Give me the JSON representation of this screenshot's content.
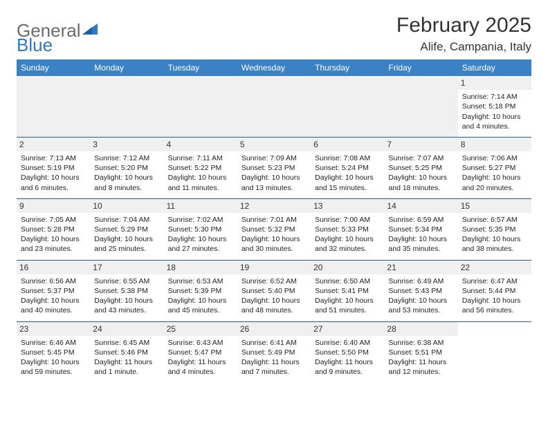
{
  "logo": {
    "text1": "General",
    "text2": "Blue"
  },
  "title": "February 2025",
  "location": "Alife, Campania, Italy",
  "header_bg": "#3b82c4",
  "day_separator_color": "#2b5a8a",
  "alt_row_bg": "#f0f0f0",
  "day_headers": [
    "Sunday",
    "Monday",
    "Tuesday",
    "Wednesday",
    "Thursday",
    "Friday",
    "Saturday"
  ],
  "weeks": [
    [
      null,
      null,
      null,
      null,
      null,
      null,
      {
        "n": "1",
        "sunrise": "Sunrise: 7:14 AM",
        "sunset": "Sunset: 5:18 PM",
        "daylight1": "Daylight: 10 hours",
        "daylight2": "and 4 minutes."
      }
    ],
    [
      {
        "n": "2",
        "sunrise": "Sunrise: 7:13 AM",
        "sunset": "Sunset: 5:19 PM",
        "daylight1": "Daylight: 10 hours",
        "daylight2": "and 6 minutes."
      },
      {
        "n": "3",
        "sunrise": "Sunrise: 7:12 AM",
        "sunset": "Sunset: 5:20 PM",
        "daylight1": "Daylight: 10 hours",
        "daylight2": "and 8 minutes."
      },
      {
        "n": "4",
        "sunrise": "Sunrise: 7:11 AM",
        "sunset": "Sunset: 5:22 PM",
        "daylight1": "Daylight: 10 hours",
        "daylight2": "and 11 minutes."
      },
      {
        "n": "5",
        "sunrise": "Sunrise: 7:09 AM",
        "sunset": "Sunset: 5:23 PM",
        "daylight1": "Daylight: 10 hours",
        "daylight2": "and 13 minutes."
      },
      {
        "n": "6",
        "sunrise": "Sunrise: 7:08 AM",
        "sunset": "Sunset: 5:24 PM",
        "daylight1": "Daylight: 10 hours",
        "daylight2": "and 15 minutes."
      },
      {
        "n": "7",
        "sunrise": "Sunrise: 7:07 AM",
        "sunset": "Sunset: 5:25 PM",
        "daylight1": "Daylight: 10 hours",
        "daylight2": "and 18 minutes."
      },
      {
        "n": "8",
        "sunrise": "Sunrise: 7:06 AM",
        "sunset": "Sunset: 5:27 PM",
        "daylight1": "Daylight: 10 hours",
        "daylight2": "and 20 minutes."
      }
    ],
    [
      {
        "n": "9",
        "sunrise": "Sunrise: 7:05 AM",
        "sunset": "Sunset: 5:28 PM",
        "daylight1": "Daylight: 10 hours",
        "daylight2": "and 23 minutes."
      },
      {
        "n": "10",
        "sunrise": "Sunrise: 7:04 AM",
        "sunset": "Sunset: 5:29 PM",
        "daylight1": "Daylight: 10 hours",
        "daylight2": "and 25 minutes."
      },
      {
        "n": "11",
        "sunrise": "Sunrise: 7:02 AM",
        "sunset": "Sunset: 5:30 PM",
        "daylight1": "Daylight: 10 hours",
        "daylight2": "and 27 minutes."
      },
      {
        "n": "12",
        "sunrise": "Sunrise: 7:01 AM",
        "sunset": "Sunset: 5:32 PM",
        "daylight1": "Daylight: 10 hours",
        "daylight2": "and 30 minutes."
      },
      {
        "n": "13",
        "sunrise": "Sunrise: 7:00 AM",
        "sunset": "Sunset: 5:33 PM",
        "daylight1": "Daylight: 10 hours",
        "daylight2": "and 32 minutes."
      },
      {
        "n": "14",
        "sunrise": "Sunrise: 6:59 AM",
        "sunset": "Sunset: 5:34 PM",
        "daylight1": "Daylight: 10 hours",
        "daylight2": "and 35 minutes."
      },
      {
        "n": "15",
        "sunrise": "Sunrise: 6:57 AM",
        "sunset": "Sunset: 5:35 PM",
        "daylight1": "Daylight: 10 hours",
        "daylight2": "and 38 minutes."
      }
    ],
    [
      {
        "n": "16",
        "sunrise": "Sunrise: 6:56 AM",
        "sunset": "Sunset: 5:37 PM",
        "daylight1": "Daylight: 10 hours",
        "daylight2": "and 40 minutes."
      },
      {
        "n": "17",
        "sunrise": "Sunrise: 6:55 AM",
        "sunset": "Sunset: 5:38 PM",
        "daylight1": "Daylight: 10 hours",
        "daylight2": "and 43 minutes."
      },
      {
        "n": "18",
        "sunrise": "Sunrise: 6:53 AM",
        "sunset": "Sunset: 5:39 PM",
        "daylight1": "Daylight: 10 hours",
        "daylight2": "and 45 minutes."
      },
      {
        "n": "19",
        "sunrise": "Sunrise: 6:52 AM",
        "sunset": "Sunset: 5:40 PM",
        "daylight1": "Daylight: 10 hours",
        "daylight2": "and 48 minutes."
      },
      {
        "n": "20",
        "sunrise": "Sunrise: 6:50 AM",
        "sunset": "Sunset: 5:41 PM",
        "daylight1": "Daylight: 10 hours",
        "daylight2": "and 51 minutes."
      },
      {
        "n": "21",
        "sunrise": "Sunrise: 6:49 AM",
        "sunset": "Sunset: 5:43 PM",
        "daylight1": "Daylight: 10 hours",
        "daylight2": "and 53 minutes."
      },
      {
        "n": "22",
        "sunrise": "Sunrise: 6:47 AM",
        "sunset": "Sunset: 5:44 PM",
        "daylight1": "Daylight: 10 hours",
        "daylight2": "and 56 minutes."
      }
    ],
    [
      {
        "n": "23",
        "sunrise": "Sunrise: 6:46 AM",
        "sunset": "Sunset: 5:45 PM",
        "daylight1": "Daylight: 10 hours",
        "daylight2": "and 59 minutes."
      },
      {
        "n": "24",
        "sunrise": "Sunrise: 6:45 AM",
        "sunset": "Sunset: 5:46 PM",
        "daylight1": "Daylight: 11 hours",
        "daylight2": "and 1 minute."
      },
      {
        "n": "25",
        "sunrise": "Sunrise: 6:43 AM",
        "sunset": "Sunset: 5:47 PM",
        "daylight1": "Daylight: 11 hours",
        "daylight2": "and 4 minutes."
      },
      {
        "n": "26",
        "sunrise": "Sunrise: 6:41 AM",
        "sunset": "Sunset: 5:49 PM",
        "daylight1": "Daylight: 11 hours",
        "daylight2": "and 7 minutes."
      },
      {
        "n": "27",
        "sunrise": "Sunrise: 6:40 AM",
        "sunset": "Sunset: 5:50 PM",
        "daylight1": "Daylight: 11 hours",
        "daylight2": "and 9 minutes."
      },
      {
        "n": "28",
        "sunrise": "Sunrise: 6:38 AM",
        "sunset": "Sunset: 5:51 PM",
        "daylight1": "Daylight: 11 hours",
        "daylight2": "and 12 minutes."
      },
      null
    ]
  ]
}
